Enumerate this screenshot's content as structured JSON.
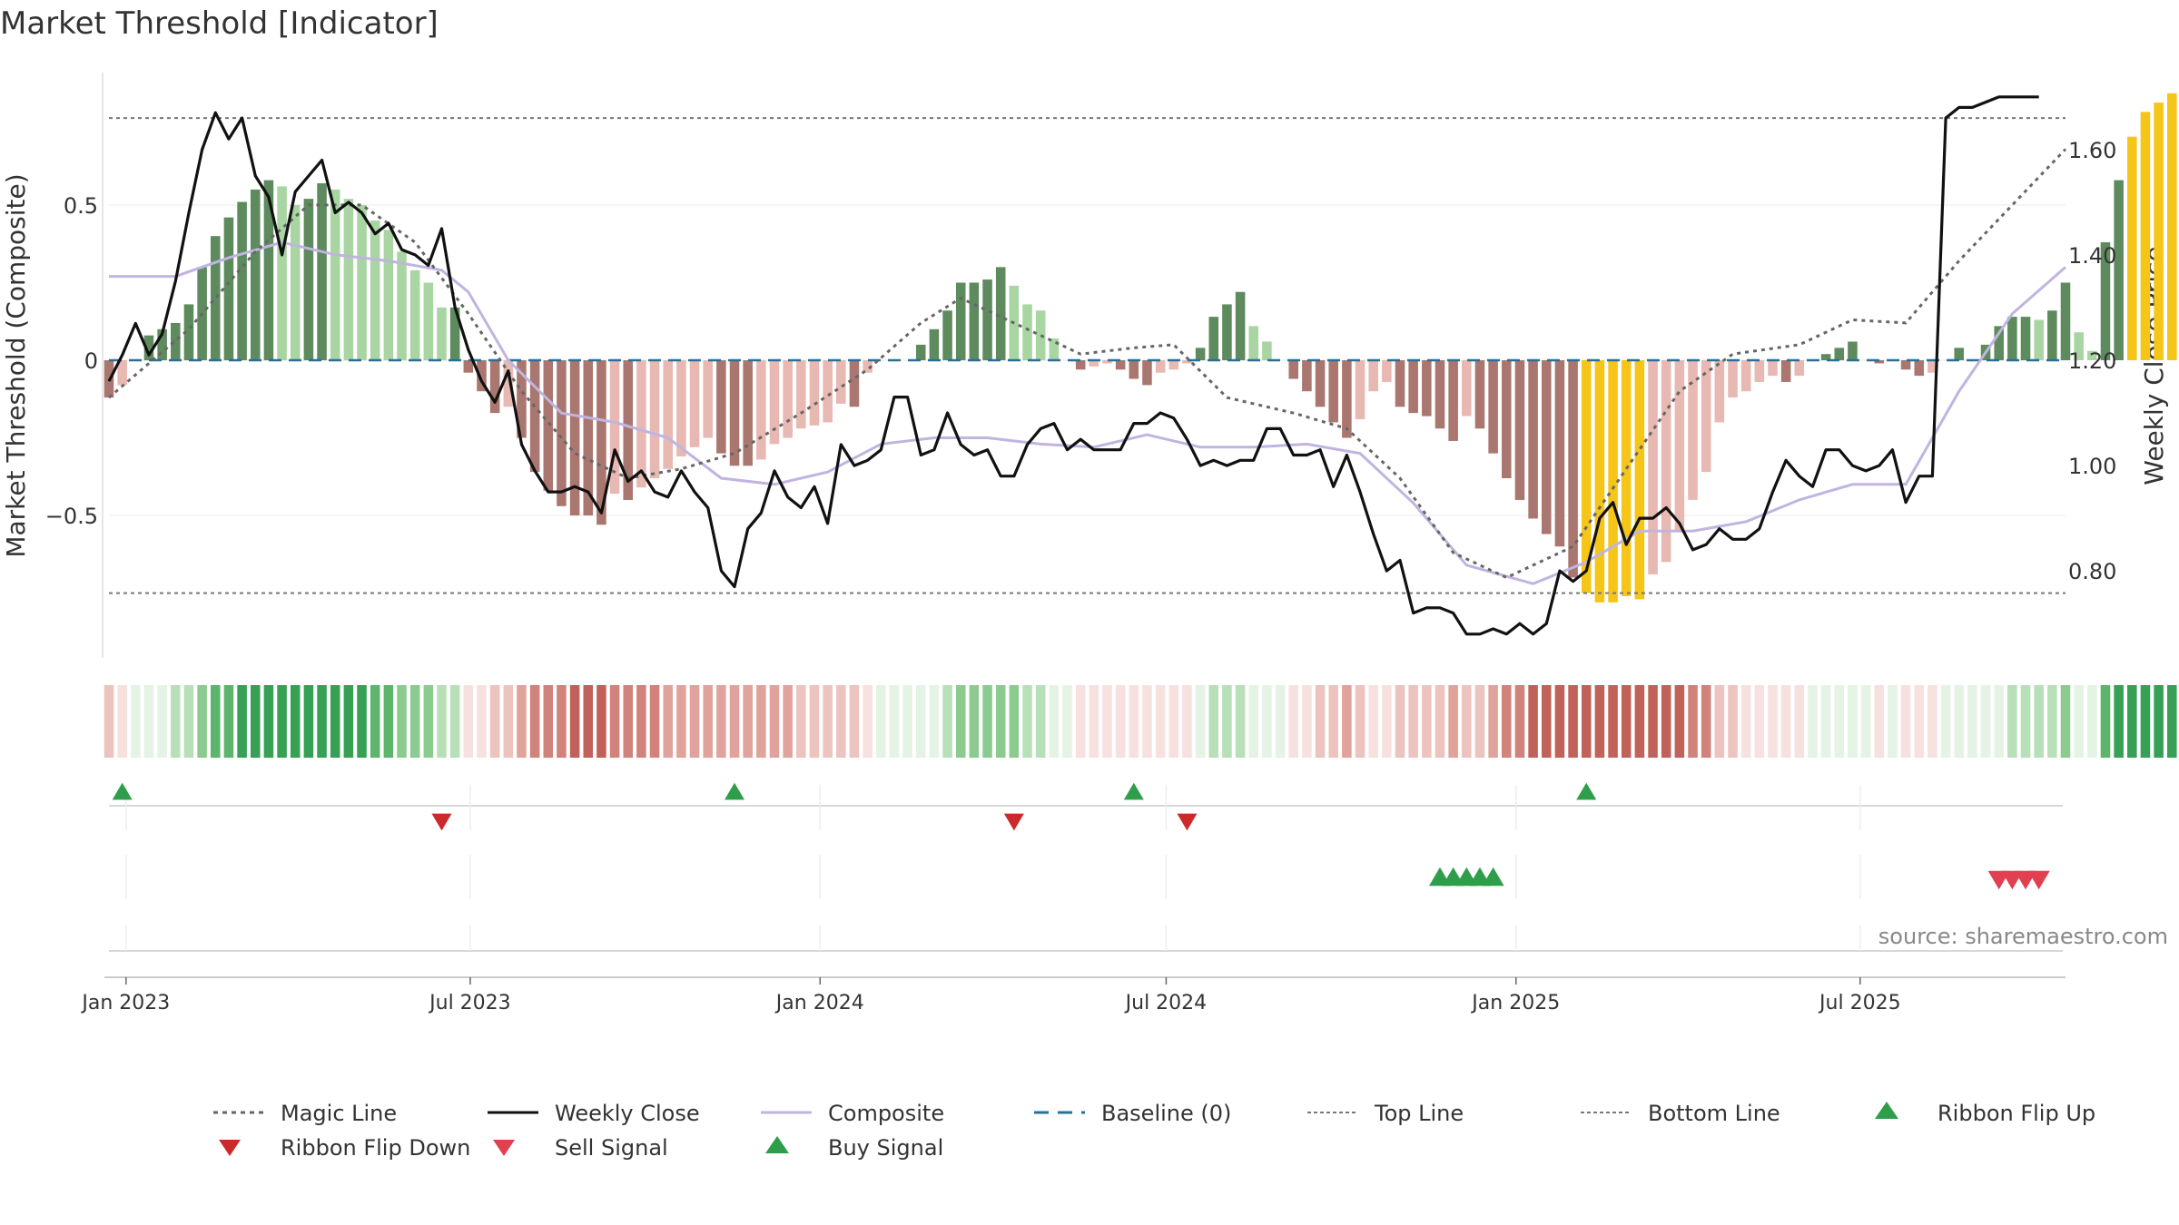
{
  "chart_data": {
    "type": "bar",
    "title": "Market Threshold [Indicator]",
    "ylabel": "Market Threshold (Composite)",
    "y2label": "Weekly Close Price",
    "ylim": [
      -0.95,
      0.95
    ],
    "y2lim": [
      0.64,
      1.76
    ],
    "yticks": [
      {
        "v": 0.5,
        "label": "0.5"
      },
      {
        "v": 0,
        "label": "0"
      },
      {
        "v": -0.5,
        "label": "−0.5"
      }
    ],
    "y2ticks": [
      {
        "v": 1.6,
        "label": "1.60"
      },
      {
        "v": 1.4,
        "label": "1.40"
      },
      {
        "v": 1.2,
        "label": "1.20"
      },
      {
        "v": 1.0,
        "label": "1.00"
      },
      {
        "v": 0.8,
        "label": "0.80"
      }
    ],
    "x_start": "2022-12-23",
    "x_end": "2025-10-17",
    "x_ticks": [
      {
        "date": "2023-01-01",
        "label": "Jan 2023"
      },
      {
        "date": "2023-07-01",
        "label": "Jul 2023"
      },
      {
        "date": "2024-01-01",
        "label": "Jan 2024"
      },
      {
        "date": "2024-07-01",
        "label": "Jul 2024"
      },
      {
        "date": "2025-01-01",
        "label": "Jan 2025"
      },
      {
        "date": "2025-07-01",
        "label": "Jul 2025"
      }
    ],
    "top_line": 0.78,
    "bottom_line": -0.75,
    "magic_line": [
      [
        "2022-12-23",
        -0.12
      ],
      [
        "2023-02-03",
        0.1
      ],
      [
        "2023-03-10",
        0.35
      ],
      [
        "2023-04-07",
        0.5
      ],
      [
        "2023-05-05",
        0.5
      ],
      [
        "2023-06-02",
        0.38
      ],
      [
        "2023-06-30",
        0.15
      ],
      [
        "2023-07-28",
        -0.1
      ],
      [
        "2023-08-25",
        -0.3
      ],
      [
        "2023-09-22",
        -0.38
      ],
      [
        "2023-10-20",
        -0.35
      ],
      [
        "2023-11-17",
        -0.3
      ],
      [
        "2023-12-22",
        -0.17
      ],
      [
        "2024-01-26",
        -0.03
      ],
      [
        "2024-02-23",
        0.12
      ],
      [
        "2024-03-15",
        0.2
      ],
      [
        "2024-04-19",
        0.1
      ],
      [
        "2024-05-17",
        0.02
      ],
      [
        "2024-06-14",
        0.04
      ],
      [
        "2024-07-05",
        0.05
      ],
      [
        "2024-08-02",
        -0.12
      ],
      [
        "2024-09-06",
        -0.17
      ],
      [
        "2024-10-04",
        -0.22
      ],
      [
        "2024-11-01",
        -0.38
      ],
      [
        "2024-11-29",
        -0.62
      ],
      [
        "2024-12-27",
        -0.7
      ],
      [
        "2025-01-31",
        -0.6
      ],
      [
        "2025-02-28",
        -0.35
      ],
      [
        "2025-03-28",
        -0.1
      ],
      [
        "2025-04-25",
        0.02
      ],
      [
        "2025-05-30",
        0.05
      ],
      [
        "2025-06-27",
        0.13
      ],
      [
        "2025-07-25",
        0.12
      ],
      [
        "2025-08-22",
        0.32
      ],
      [
        "2025-09-19",
        0.5
      ],
      [
        "2025-10-17",
        0.68
      ]
    ],
    "composite": [
      [
        "2022-12-23",
        0.27
      ],
      [
        "2023-01-27",
        0.27
      ],
      [
        "2023-02-24",
        0.33
      ],
      [
        "2023-03-24",
        0.38
      ],
      [
        "2023-04-21",
        0.34
      ],
      [
        "2023-05-19",
        0.32
      ],
      [
        "2023-06-16",
        0.29
      ],
      [
        "2023-06-30",
        0.22
      ],
      [
        "2023-07-21",
        0.0
      ],
      [
        "2023-08-18",
        -0.17
      ],
      [
        "2023-09-15",
        -0.2
      ],
      [
        "2023-10-13",
        -0.25
      ],
      [
        "2023-11-10",
        -0.38
      ],
      [
        "2023-12-08",
        -0.4
      ],
      [
        "2024-01-05",
        -0.36
      ],
      [
        "2024-02-02",
        -0.27
      ],
      [
        "2024-03-01",
        -0.25
      ],
      [
        "2024-03-29",
        -0.25
      ],
      [
        "2024-04-26",
        -0.27
      ],
      [
        "2024-05-24",
        -0.28
      ],
      [
        "2024-06-21",
        -0.24
      ],
      [
        "2024-07-19",
        -0.28
      ],
      [
        "2024-08-16",
        -0.28
      ],
      [
        "2024-09-13",
        -0.27
      ],
      [
        "2024-10-11",
        -0.3
      ],
      [
        "2024-11-08",
        -0.46
      ],
      [
        "2024-12-06",
        -0.66
      ],
      [
        "2025-01-10",
        -0.72
      ],
      [
        "2025-02-07",
        -0.65
      ],
      [
        "2025-03-07",
        -0.55
      ],
      [
        "2025-04-04",
        -0.55
      ],
      [
        "2025-05-02",
        -0.52
      ],
      [
        "2025-05-30",
        -0.45
      ],
      [
        "2025-06-27",
        -0.4
      ],
      [
        "2025-07-25",
        -0.4
      ],
      [
        "2025-08-22",
        -0.1
      ],
      [
        "2025-09-19",
        0.15
      ],
      [
        "2025-10-17",
        0.3
      ]
    ],
    "weekly_close": [
      [
        "2022-12-23",
        1.16
      ],
      [
        "2022-12-30",
        1.21
      ],
      [
        "2023-01-06",
        1.27
      ],
      [
        "2023-01-13",
        1.21
      ],
      [
        "2023-01-20",
        1.25
      ],
      [
        "2023-01-27",
        1.35
      ],
      [
        "2023-02-03",
        1.48
      ],
      [
        "2023-02-10",
        1.6
      ],
      [
        "2023-02-17",
        1.67
      ],
      [
        "2023-02-24",
        1.62
      ],
      [
        "2023-03-03",
        1.66
      ],
      [
        "2023-03-10",
        1.55
      ],
      [
        "2023-03-17",
        1.51
      ],
      [
        "2023-03-24",
        1.4
      ],
      [
        "2023-03-31",
        1.52
      ],
      [
        "2023-04-07",
        1.55
      ],
      [
        "2023-04-14",
        1.58
      ],
      [
        "2023-04-21",
        1.48
      ],
      [
        "2023-04-28",
        1.5
      ],
      [
        "2023-05-05",
        1.48
      ],
      [
        "2023-05-12",
        1.44
      ],
      [
        "2023-05-19",
        1.46
      ],
      [
        "2023-05-26",
        1.41
      ],
      [
        "2023-06-02",
        1.4
      ],
      [
        "2023-06-09",
        1.38
      ],
      [
        "2023-06-16",
        1.45
      ],
      [
        "2023-06-23",
        1.3
      ],
      [
        "2023-06-30",
        1.22
      ],
      [
        "2023-07-07",
        1.16
      ],
      [
        "2023-07-14",
        1.12
      ],
      [
        "2023-07-21",
        1.18
      ],
      [
        "2023-07-28",
        1.04
      ],
      [
        "2023-08-04",
        0.99
      ],
      [
        "2023-08-11",
        0.95
      ],
      [
        "2023-08-18",
        0.95
      ],
      [
        "2023-08-25",
        0.96
      ],
      [
        "2023-09-01",
        0.95
      ],
      [
        "2023-09-08",
        0.91
      ],
      [
        "2023-09-15",
        1.03
      ],
      [
        "2023-09-22",
        0.97
      ],
      [
        "2023-09-29",
        0.99
      ],
      [
        "2023-10-06",
        0.95
      ],
      [
        "2023-10-13",
        0.94
      ],
      [
        "2023-10-20",
        0.99
      ],
      [
        "2023-10-27",
        0.95
      ],
      [
        "2023-11-03",
        0.92
      ],
      [
        "2023-11-10",
        0.8
      ],
      [
        "2023-11-17",
        0.77
      ],
      [
        "2023-11-24",
        0.88
      ],
      [
        "2023-12-01",
        0.91
      ],
      [
        "2023-12-08",
        0.99
      ],
      [
        "2023-12-15",
        0.94
      ],
      [
        "2023-12-22",
        0.92
      ],
      [
        "2023-12-29",
        0.96
      ],
      [
        "2024-01-05",
        0.89
      ],
      [
        "2024-01-12",
        1.04
      ],
      [
        "2024-01-19",
        1.0
      ],
      [
        "2024-01-26",
        1.01
      ],
      [
        "2024-02-02",
        1.03
      ],
      [
        "2024-02-09",
        1.13
      ],
      [
        "2024-02-16",
        1.13
      ],
      [
        "2024-02-23",
        1.02
      ],
      [
        "2024-03-01",
        1.03
      ],
      [
        "2024-03-08",
        1.1
      ],
      [
        "2024-03-15",
        1.04
      ],
      [
        "2024-03-22",
        1.02
      ],
      [
        "2024-03-29",
        1.03
      ],
      [
        "2024-04-05",
        0.98
      ],
      [
        "2024-04-12",
        0.98
      ],
      [
        "2024-04-19",
        1.04
      ],
      [
        "2024-04-26",
        1.07
      ],
      [
        "2024-05-03",
        1.08
      ],
      [
        "2024-05-10",
        1.03
      ],
      [
        "2024-05-17",
        1.05
      ],
      [
        "2024-05-24",
        1.03
      ],
      [
        "2024-05-31",
        1.03
      ],
      [
        "2024-06-07",
        1.03
      ],
      [
        "2024-06-14",
        1.08
      ],
      [
        "2024-06-21",
        1.08
      ],
      [
        "2024-06-28",
        1.1
      ],
      [
        "2024-07-05",
        1.09
      ],
      [
        "2024-07-12",
        1.05
      ],
      [
        "2024-07-19",
        1.0
      ],
      [
        "2024-07-26",
        1.01
      ],
      [
        "2024-08-02",
        1.0
      ],
      [
        "2024-08-09",
        1.01
      ],
      [
        "2024-08-16",
        1.01
      ],
      [
        "2024-08-23",
        1.07
      ],
      [
        "2024-08-30",
        1.07
      ],
      [
        "2024-09-06",
        1.02
      ],
      [
        "2024-09-13",
        1.02
      ],
      [
        "2024-09-20",
        1.03
      ],
      [
        "2024-09-27",
        0.96
      ],
      [
        "2024-10-04",
        1.02
      ],
      [
        "2024-10-11",
        0.95
      ],
      [
        "2024-10-18",
        0.87
      ],
      [
        "2024-10-25",
        0.8
      ],
      [
        "2024-11-01",
        0.82
      ],
      [
        "2024-11-08",
        0.72
      ],
      [
        "2024-11-15",
        0.73
      ],
      [
        "2024-11-22",
        0.73
      ],
      [
        "2024-11-29",
        0.72
      ],
      [
        "2024-12-06",
        0.68
      ],
      [
        "2024-12-13",
        0.68
      ],
      [
        "2024-12-20",
        0.69
      ],
      [
        "2024-12-27",
        0.68
      ],
      [
        "2025-01-03",
        0.7
      ],
      [
        "2025-01-10",
        0.68
      ],
      [
        "2025-01-17",
        0.7
      ],
      [
        "2025-01-24",
        0.8
      ],
      [
        "2025-01-31",
        0.78
      ],
      [
        "2025-02-07",
        0.8
      ],
      [
        "2025-02-14",
        0.9
      ],
      [
        "2025-02-21",
        0.93
      ],
      [
        "2025-02-28",
        0.85
      ],
      [
        "2025-03-07",
        0.9
      ],
      [
        "2025-03-14",
        0.9
      ],
      [
        "2025-03-21",
        0.92
      ],
      [
        "2025-03-28",
        0.89
      ],
      [
        "2025-04-04",
        0.84
      ],
      [
        "2025-04-11",
        0.85
      ],
      [
        "2025-04-18",
        0.88
      ],
      [
        "2025-04-25",
        0.86
      ],
      [
        "2025-05-02",
        0.86
      ],
      [
        "2025-05-09",
        0.88
      ],
      [
        "2025-05-16",
        0.95
      ],
      [
        "2025-05-23",
        1.01
      ],
      [
        "2025-05-30",
        0.98
      ],
      [
        "2025-06-06",
        0.96
      ],
      [
        "2025-06-13",
        1.03
      ],
      [
        "2025-06-20",
        1.03
      ],
      [
        "2025-06-27",
        1.0
      ],
      [
        "2025-07-04",
        0.99
      ],
      [
        "2025-07-11",
        1.0
      ],
      [
        "2025-07-18",
        1.03
      ],
      [
        "2025-07-25",
        0.93
      ],
      [
        "2025-08-01",
        0.98
      ],
      [
        "2025-08-08",
        0.98
      ],
      [
        "2025-08-15",
        1.66
      ],
      [
        "2025-08-22",
        1.68
      ],
      [
        "2025-08-29",
        1.68
      ],
      [
        "2025-09-05",
        1.69
      ],
      [
        "2025-09-12",
        1.7
      ],
      [
        "2025-09-19",
        1.7
      ],
      [
        "2025-09-26",
        1.7
      ],
      [
        "2025-10-03",
        1.7
      ]
    ],
    "composite_bars": [
      -0.12,
      -0.08,
      0.0,
      0.08,
      0.1,
      0.12,
      0.18,
      0.3,
      0.4,
      0.46,
      0.51,
      0.55,
      0.58,
      0.56,
      0.5,
      0.52,
      0.57,
      0.55,
      0.52,
      0.5,
      0.45,
      0.42,
      0.35,
      0.29,
      0.25,
      0.17,
      0.17,
      -0.04,
      -0.1,
      -0.17,
      -0.15,
      -0.25,
      -0.36,
      -0.42,
      -0.47,
      -0.5,
      -0.5,
      -0.53,
      -0.43,
      -0.45,
      -0.41,
      -0.38,
      -0.35,
      -0.31,
      -0.28,
      -0.25,
      -0.3,
      -0.34,
      -0.34,
      -0.32,
      -0.27,
      -0.25,
      -0.22,
      -0.21,
      -0.2,
      -0.14,
      -0.15,
      -0.04,
      0.0,
      0.0,
      0.0,
      0.05,
      0.1,
      0.16,
      0.25,
      0.25,
      0.26,
      0.3,
      0.24,
      0.18,
      0.16,
      0.07,
      0.0,
      -0.03,
      -0.02,
      -0.01,
      -0.03,
      -0.06,
      -0.08,
      -0.04,
      -0.03,
      -0.01,
      0.04,
      0.14,
      0.18,
      0.22,
      0.11,
      0.06,
      0.0,
      -0.06,
      -0.1,
      -0.15,
      -0.2,
      -0.25,
      -0.19,
      -0.1,
      -0.07,
      -0.15,
      -0.17,
      -0.18,
      -0.22,
      -0.26,
      -0.18,
      -0.22,
      -0.3,
      -0.38,
      -0.45,
      -0.51,
      -0.56,
      -0.6,
      -0.7,
      -0.75,
      -0.78,
      -0.78,
      -0.76,
      -0.77,
      -0.69,
      -0.65,
      -0.55,
      -0.45,
      -0.36,
      -0.2,
      -0.12,
      -0.1,
      -0.07,
      -0.05,
      -0.07,
      -0.05,
      0.0,
      0.02,
      0.04,
      0.06,
      0.0,
      -0.01,
      0.0,
      -0.03,
      -0.05,
      -0.04,
      0.0,
      0.04,
      0.0,
      0.05,
      0.11,
      0.14,
      0.14,
      0.13,
      0.16,
      0.25,
      0.09,
      0.03,
      0.38,
      0.58,
      0.72,
      0.8,
      0.83,
      0.86,
      0.87
    ],
    "bar_colors": {
      "pos_strong": "#5e8b5e",
      "pos_weak": "#a8d5a2",
      "neg_strong": "#a97770",
      "neg_weak": "#e8b8b2",
      "extreme": "#f5c518",
      "extreme_threshold": 0.72
    },
    "line_colors": {
      "magic": "#666666",
      "weekly_close": "#111111",
      "composite": "#c0b4e0",
      "baseline": "#2a6f97",
      "threshold": "#777777"
    },
    "ribbon_colors": {
      "pos": [
        "#e4f3e3",
        "#b8e0b8",
        "#8ccb8f",
        "#5db56b",
        "#36a155"
      ],
      "neg": [
        "#f7e1df",
        "#edc3bf",
        "#e0a39c",
        "#d1827a",
        "#c1625a"
      ]
    },
    "ribbon_flip_up": [
      "2022-12-30",
      "2023-11-17",
      "2024-06-14",
      "2025-02-07"
    ],
    "ribbon_flip_down": [
      "2023-06-16",
      "2024-04-12",
      "2024-07-12"
    ],
    "buy_signal": [
      "2024-11-22",
      "2024-11-29",
      "2024-12-06",
      "2024-12-13",
      "2024-12-20"
    ],
    "sell_signal": [
      "2025-09-12",
      "2025-09-19",
      "2025-09-26",
      "2025-10-03"
    ],
    "marker_colors": {
      "flip_up": "#2e9e4a",
      "flip_down": "#cc2a2a",
      "sell": "#e04050",
      "buy": "#2e9e4a"
    },
    "source": "source: sharemaestro.com",
    "legend": [
      {
        "label": "Magic Line",
        "kind": "dotted",
        "color": "#666666"
      },
      {
        "label": "Weekly Close",
        "kind": "solid",
        "color": "#111111"
      },
      {
        "label": "Composite",
        "kind": "solid",
        "color": "#c0b4e0"
      },
      {
        "label": "Baseline (0)",
        "kind": "dashed",
        "color": "#2a6f97"
      },
      {
        "label": "Top Line",
        "kind": "dotted-thin",
        "color": "#777777"
      },
      {
        "label": "Bottom Line",
        "kind": "dotted-thin",
        "color": "#777777"
      },
      {
        "label": "Ribbon Flip Up",
        "kind": "tri-up",
        "color": "#2e9e4a"
      },
      {
        "label": "Ribbon Flip Down",
        "kind": "tri-down",
        "color": "#cc2a2a"
      },
      {
        "label": "Sell Signal",
        "kind": "tri-down",
        "color": "#e04050"
      },
      {
        "label": "Buy Signal",
        "kind": "tri-up",
        "color": "#2e9e4a"
      }
    ]
  }
}
